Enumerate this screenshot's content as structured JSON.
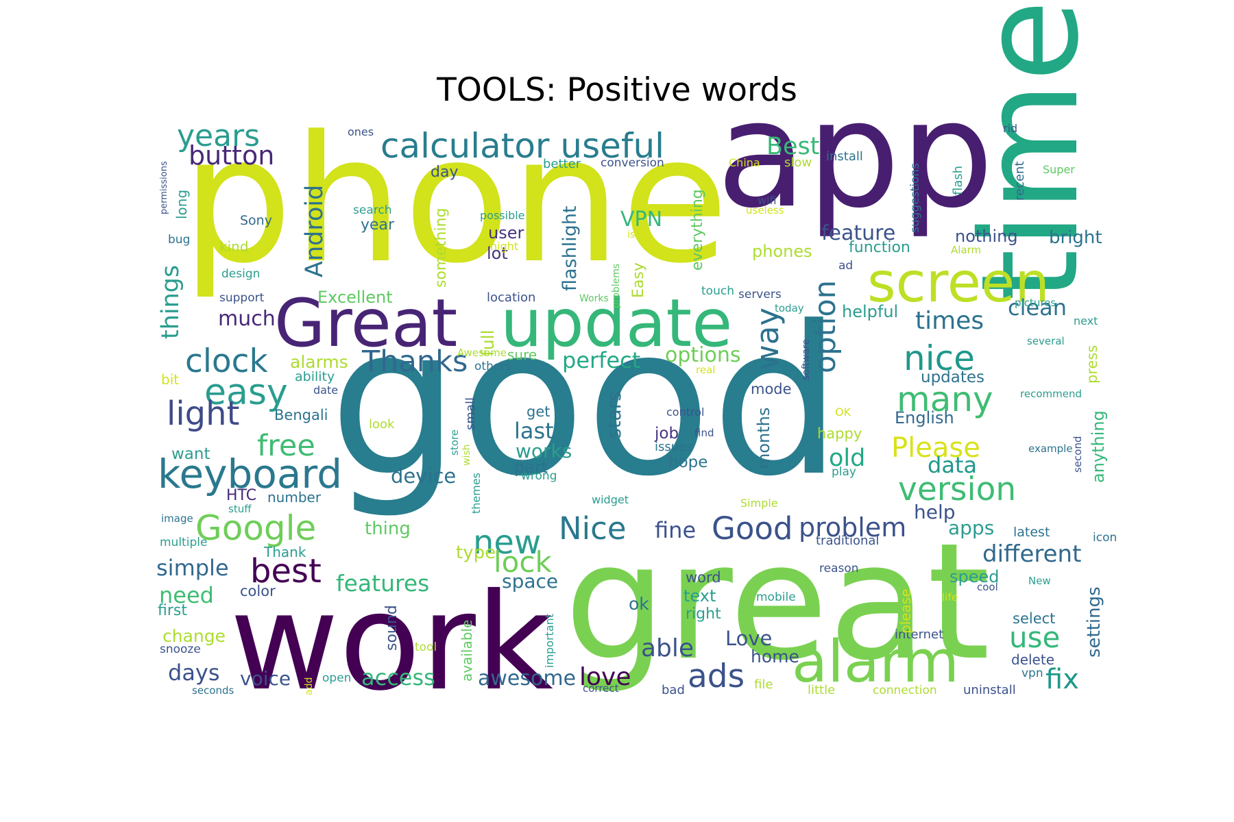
{
  "title": "TOOLS: Positive words",
  "palette": [
    "#440154",
    "#472d7b",
    "#3b528b",
    "#2c728e",
    "#21918c",
    "#28ae80",
    "#5ec962",
    "#addc30",
    "#d2e21b",
    "#fde725"
  ],
  "words": [
    {
      "text": "good",
      "color": "#287d8e"
    },
    {
      "text": "phone",
      "color": "#d2e21b"
    },
    {
      "text": "app",
      "color": "#481f70"
    },
    {
      "text": "great",
      "color": "#7ad151"
    },
    {
      "text": "work",
      "color": "#440154"
    },
    {
      "text": "time",
      "color": "#22a884"
    },
    {
      "text": "Great",
      "color": "#482475"
    },
    {
      "text": "update",
      "color": "#35b779"
    },
    {
      "text": "alarm",
      "color": "#7ad151"
    },
    {
      "text": "screen",
      "color": "#bddf26"
    },
    {
      "text": "calculator useful",
      "color": "#287d8e"
    },
    {
      "text": "keyboard",
      "color": "#2a788e"
    },
    {
      "text": "Google",
      "color": "#6ece58"
    },
    {
      "text": "easy",
      "color": "#2a9d8f"
    },
    {
      "text": "clock",
      "color": "#2a788e"
    },
    {
      "text": "years",
      "color": "#2a9d8f"
    },
    {
      "text": "button",
      "color": "#482878"
    },
    {
      "text": "light",
      "color": "#3e4a89"
    },
    {
      "text": "free",
      "color": "#3fbc73"
    },
    {
      "text": "Thanks",
      "color": "#31688e"
    },
    {
      "text": "nice",
      "color": "#1f988b"
    },
    {
      "text": "many",
      "color": "#3fbc73"
    },
    {
      "text": "version",
      "color": "#3fbc73"
    },
    {
      "text": "Nice",
      "color": "#2a788e"
    },
    {
      "text": "Good",
      "color": "#3b528b"
    },
    {
      "text": "new",
      "color": "#2a9d8f"
    },
    {
      "text": "best",
      "color": "#440154"
    },
    {
      "text": "ads",
      "color": "#3b528b"
    },
    {
      "text": "problem",
      "color": "#3b528b"
    },
    {
      "text": "Please",
      "color": "#d8e219"
    },
    {
      "text": "lock",
      "color": "#6ece58"
    },
    {
      "text": "option",
      "color": "#2c728e"
    },
    {
      "text": "way",
      "color": "#2c728e"
    },
    {
      "text": "Best",
      "color": "#38b977"
    },
    {
      "text": "Android",
      "color": "#2c728e"
    },
    {
      "text": "fix",
      "color": "#1f988b"
    },
    {
      "text": "use",
      "color": "#35b779"
    },
    {
      "text": "different",
      "color": "#31688e"
    },
    {
      "text": "love",
      "color": "#440154"
    },
    {
      "text": "able",
      "color": "#3b528b"
    },
    {
      "text": "perfect",
      "color": "#22a884"
    },
    {
      "text": "options",
      "color": "#6ece58"
    },
    {
      "text": "features",
      "color": "#35b779"
    },
    {
      "text": "simple",
      "color": "#31688e"
    },
    {
      "text": "times",
      "color": "#2c728e"
    },
    {
      "text": "clean",
      "color": "#2c728e"
    },
    {
      "text": "feature",
      "color": "#3b528b"
    },
    {
      "text": "old",
      "color": "#22a884"
    },
    {
      "text": "data",
      "color": "#1f988b"
    },
    {
      "text": "access",
      "color": "#35b779"
    },
    {
      "text": "awesome",
      "color": "#31688e"
    },
    {
      "text": "need",
      "color": "#3fbc73"
    },
    {
      "text": "days",
      "color": "#3b528b"
    },
    {
      "text": "fine",
      "color": "#3b528b"
    },
    {
      "text": "last",
      "color": "#2c728e"
    },
    {
      "text": "works",
      "color": "#2a9d8f"
    },
    {
      "text": "device",
      "color": "#2c728e"
    },
    {
      "text": "much",
      "color": "#482878"
    },
    {
      "text": "things",
      "color": "#2a9d8f"
    },
    {
      "text": "flashlight",
      "color": "#2c728e"
    },
    {
      "text": "VPN",
      "color": "#35b779"
    },
    {
      "text": "Love",
      "color": "#3b528b"
    },
    {
      "text": "home",
      "color": "#3b528b"
    },
    {
      "text": "voice",
      "color": "#3b528b"
    },
    {
      "text": "settings",
      "color": "#31688e"
    },
    {
      "text": "help",
      "color": "#3b528b"
    },
    {
      "text": "apps",
      "color": "#2a9d8f"
    },
    {
      "text": "updates",
      "color": "#2c728e"
    },
    {
      "text": "space",
      "color": "#2c728e"
    },
    {
      "text": "user",
      "color": "#46337e"
    },
    {
      "text": "lot",
      "color": "#46337e"
    },
    {
      "text": "Excellent",
      "color": "#5ec962"
    },
    {
      "text": "alarms",
      "color": "#addc30"
    },
    {
      "text": "full",
      "color": "#addc30"
    },
    {
      "text": "everything",
      "color": "#5ec962"
    },
    {
      "text": "Easy",
      "color": "#addc30"
    },
    {
      "text": "something",
      "color": "#addc30"
    },
    {
      "text": "phones",
      "color": "#addc30"
    },
    {
      "text": "function",
      "color": "#2a9d8f"
    },
    {
      "text": "nothing",
      "color": "#3b528b"
    },
    {
      "text": "bright",
      "color": "#2c728e"
    },
    {
      "text": "helpful",
      "color": "#2a9d8f"
    },
    {
      "text": "anything",
      "color": "#35b779"
    },
    {
      "text": "months",
      "color": "#2c728e"
    },
    {
      "text": "stars",
      "color": "#2c728e"
    },
    {
      "text": "mode",
      "color": "#3b528b"
    },
    {
      "text": "English",
      "color": "#31688e"
    },
    {
      "text": "happy",
      "color": "#addc30"
    },
    {
      "text": "job",
      "color": "#46337e"
    },
    {
      "text": "hope",
      "color": "#2c728e"
    },
    {
      "text": "part",
      "color": "#2c728e"
    },
    {
      "text": "sure",
      "color": "#5ec962"
    },
    {
      "text": "thing",
      "color": "#5ec962"
    },
    {
      "text": "type",
      "color": "#addc30"
    },
    {
      "text": "HTC",
      "color": "#482878"
    },
    {
      "text": "number",
      "color": "#2c728e"
    },
    {
      "text": "want",
      "color": "#2a9d8f"
    },
    {
      "text": "Bengali",
      "color": "#2c728e"
    },
    {
      "text": "year",
      "color": "#2c728e"
    },
    {
      "text": "day",
      "color": "#3b528b"
    },
    {
      "text": "color",
      "color": "#3b528b"
    },
    {
      "text": "first",
      "color": "#2a9d8f"
    },
    {
      "text": "change",
      "color": "#addc30"
    },
    {
      "text": "Thank",
      "color": "#2a9d8f"
    },
    {
      "text": "ok",
      "color": "#2c728e"
    },
    {
      "text": "word",
      "color": "#3b528b"
    },
    {
      "text": "text",
      "color": "#2a9d8f"
    },
    {
      "text": "right",
      "color": "#2a9d8f"
    },
    {
      "text": "sound",
      "color": "#3b528b"
    },
    {
      "text": "available",
      "color": "#5ec962"
    },
    {
      "text": "get",
      "color": "#2c728e"
    },
    {
      "text": "speed",
      "color": "#2a9d8f"
    },
    {
      "text": "select",
      "color": "#2c728e"
    },
    {
      "text": "delete",
      "color": "#3b528b"
    },
    {
      "text": "internet",
      "color": "#3b528b"
    },
    {
      "text": "latest",
      "color": "#2c728e"
    },
    {
      "text": "icon",
      "color": "#2c728e"
    },
    {
      "text": "press",
      "color": "#addc30"
    },
    {
      "text": "please",
      "color": "#d2e21b"
    },
    {
      "text": "kind",
      "color": "#addc30"
    },
    {
      "text": "bug",
      "color": "#2c728e"
    },
    {
      "text": "long",
      "color": "#2a9d8f"
    },
    {
      "text": "Sony",
      "color": "#31688e"
    },
    {
      "text": "search",
      "color": "#2a9d8f"
    },
    {
      "text": "possible",
      "color": "#2a9d8f"
    },
    {
      "text": "night",
      "color": "#d2e21b"
    },
    {
      "text": "better",
      "color": "#2a9d8f"
    },
    {
      "text": "conversion",
      "color": "#3b528b"
    },
    {
      "text": "China",
      "color": "#d2e21b"
    },
    {
      "text": "slow",
      "color": "#addc30"
    },
    {
      "text": "install",
      "color": "#2c728e"
    },
    {
      "text": "ones",
      "color": "#3b528b"
    },
    {
      "text": "rid",
      "color": "#3b528b"
    },
    {
      "text": "Super",
      "color": "#5ec962"
    },
    {
      "text": "recent",
      "color": "#31688e"
    },
    {
      "text": "flash",
      "color": "#2a9d8f"
    },
    {
      "text": "suggestions",
      "color": "#2c728e"
    },
    {
      "text": "wifi",
      "color": "#3b528b"
    },
    {
      "text": "useless",
      "color": "#d2e21b"
    },
    {
      "text": "issue",
      "color": "#d2e21b"
    },
    {
      "text": "problems",
      "color": "#5ec962"
    },
    {
      "text": "Alarm",
      "color": "#addc30"
    },
    {
      "text": "ad",
      "color": "#3b528b"
    },
    {
      "text": "design",
      "color": "#2a9d8f"
    },
    {
      "text": "support",
      "color": "#3b528b"
    },
    {
      "text": "location",
      "color": "#3b528b"
    },
    {
      "text": "Works",
      "color": "#5ec962"
    },
    {
      "text": "touch",
      "color": "#2a9d8f"
    },
    {
      "text": "servers",
      "color": "#3b528b"
    },
    {
      "text": "today",
      "color": "#2a9d8f"
    },
    {
      "text": "pictures",
      "color": "#2a9d8f"
    },
    {
      "text": "next",
      "color": "#2a9d8f"
    },
    {
      "text": "several",
      "color": "#2a9d8f"
    },
    {
      "text": "Awesome",
      "color": "#addc30"
    },
    {
      "text": "others",
      "color": "#2c728e"
    },
    {
      "text": "real",
      "color": "#d2e21b"
    },
    {
      "text": "software",
      "color": "#3b528b"
    },
    {
      "text": "bit",
      "color": "#d2e21b"
    },
    {
      "text": "ability",
      "color": "#2a9d8f"
    },
    {
      "text": "date",
      "color": "#3b528b"
    },
    {
      "text": "recommend",
      "color": "#2a9d8f"
    },
    {
      "text": "small",
      "color": "#3b528b"
    },
    {
      "text": "look",
      "color": "#addc30"
    },
    {
      "text": "control",
      "color": "#3b528b"
    },
    {
      "text": "find",
      "color": "#3b528b"
    },
    {
      "text": "OK",
      "color": "#d2e21b"
    },
    {
      "text": "issues",
      "color": "#2c728e"
    },
    {
      "text": "example",
      "color": "#2c728e"
    },
    {
      "text": "second",
      "color": "#3b528b"
    },
    {
      "text": "store",
      "color": "#2a9d8f"
    },
    {
      "text": "wish",
      "color": "#addc30"
    },
    {
      "text": "wrong",
      "color": "#2a9d8f"
    },
    {
      "text": "play",
      "color": "#2a9d8f"
    },
    {
      "text": "themes",
      "color": "#2a9d8f"
    },
    {
      "text": "widget",
      "color": "#2a9d8f"
    },
    {
      "text": "Simple",
      "color": "#addc30"
    },
    {
      "text": "image",
      "color": "#2c728e"
    },
    {
      "text": "stuff",
      "color": "#2a9d8f"
    },
    {
      "text": "multiple",
      "color": "#2a9d8f"
    },
    {
      "text": "traditional",
      "color": "#3b528b"
    },
    {
      "text": "reason",
      "color": "#3b528b"
    },
    {
      "text": "cool",
      "color": "#3b528b"
    },
    {
      "text": "New",
      "color": "#2a9d8f"
    },
    {
      "text": "life",
      "color": "#d2e21b"
    },
    {
      "text": "mobile",
      "color": "#2a9d8f"
    },
    {
      "text": "important",
      "color": "#2a9d8f"
    },
    {
      "text": "tool",
      "color": "#addc30"
    },
    {
      "text": "snooze",
      "color": "#3b528b"
    },
    {
      "text": "seconds",
      "color": "#2c728e"
    },
    {
      "text": "add",
      "color": "#d2e21b"
    },
    {
      "text": "open",
      "color": "#2a9d8f"
    },
    {
      "text": "correct",
      "color": "#3b528b"
    },
    {
      "text": "bad",
      "color": "#3b528b"
    },
    {
      "text": "file",
      "color": "#addc30"
    },
    {
      "text": "little",
      "color": "#addc30"
    },
    {
      "text": "connection",
      "color": "#addc30"
    },
    {
      "text": "uninstall",
      "color": "#3b528b"
    },
    {
      "text": "vpn",
      "color": "#2c728e"
    },
    {
      "text": "permissions",
      "color": "#3b528b"
    }
  ]
}
